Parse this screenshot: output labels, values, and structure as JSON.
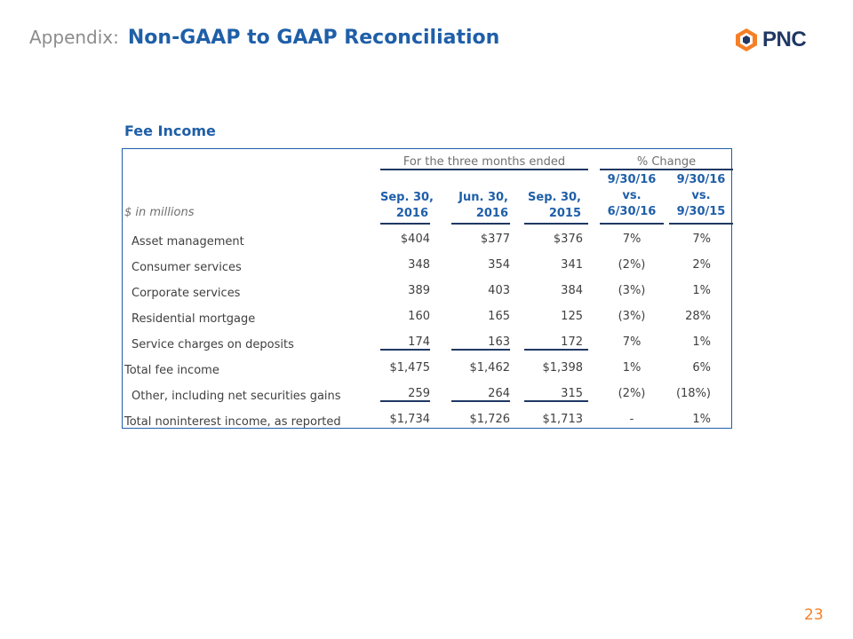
{
  "header": {
    "prefix": "Appendix:",
    "title": "Non-GAAP to GAAP Reconciliation"
  },
  "logo": {
    "text": "PNC",
    "icon": "pnc-logo-icon",
    "color": "#f58025"
  },
  "section_title": "Fee Income",
  "table": {
    "group_headers": {
      "three_months": "For the three months ended",
      "pct_change": "% Change"
    },
    "units_label": "$ in millions",
    "columns": [
      {
        "line1": "Sep. 30,",
        "line2": "2016"
      },
      {
        "line1": "Jun. 30,",
        "line2": "2016"
      },
      {
        "line1": "Sep. 30,",
        "line2": "2015"
      },
      {
        "line1": "9/30/16",
        "line2": "vs.",
        "line3": "6/30/16"
      },
      {
        "line1": "9/30/16",
        "line2": "vs.",
        "line3": "9/30/15"
      }
    ],
    "rows": [
      {
        "label": "Asset management",
        "values": [
          "$404",
          "$377",
          "$376",
          "7%",
          "7%"
        ]
      },
      {
        "label": "Consumer services",
        "values": [
          "348",
          "354",
          "341",
          "(2%)",
          "2%"
        ]
      },
      {
        "label": "Corporate services",
        "values": [
          "389",
          "403",
          "384",
          "(3%)",
          "1%"
        ]
      },
      {
        "label": "Residential mortgage",
        "values": [
          "160",
          "165",
          "125",
          "(3%)",
          "28%"
        ]
      },
      {
        "label": "Service charges on deposits",
        "values": [
          "174",
          "163",
          "172",
          "7%",
          "1%"
        ]
      },
      {
        "label": "Total fee income",
        "values": [
          "$1,475",
          "$1,462",
          "$1,398",
          "1%",
          "6%"
        ]
      },
      {
        "label": "Other, including net securities gains",
        "values": [
          "259",
          "264",
          "315",
          "(2%)",
          "(18%)"
        ]
      },
      {
        "label": "Total noninterest income, as reported",
        "values": [
          "$1,734",
          "$1,726",
          "$1,713",
          "-",
          "1%"
        ]
      }
    ]
  },
  "page_number": "23",
  "colors": {
    "title_blue": "#1f5fa8",
    "rule_navy": "#1f3864",
    "accent_orange": "#f58025"
  }
}
